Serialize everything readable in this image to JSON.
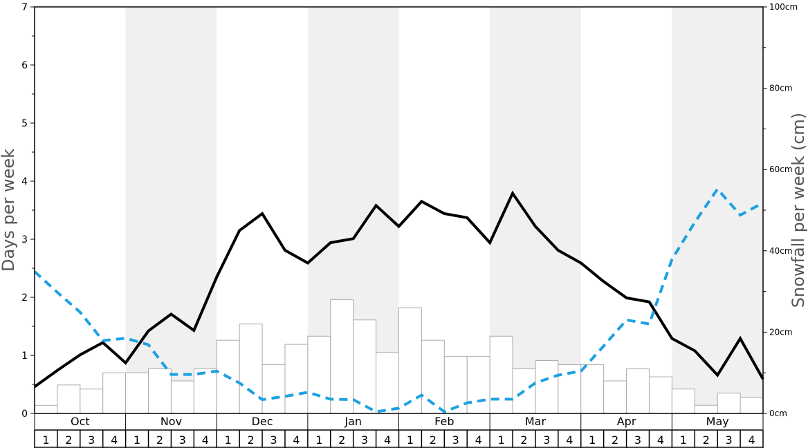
{
  "chart_data": {
    "type": "bar",
    "months": [
      "Oct",
      "Nov",
      "Dec",
      "Jan",
      "Feb",
      "Mar",
      "Apr",
      "May"
    ],
    "weeks": [
      "1",
      "2",
      "3",
      "4"
    ],
    "ylabel_left": "Days per week",
    "ylabel_right": "Snowfall per week (cm)",
    "ylim_left": [
      0,
      7
    ],
    "ylim_right": [
      0,
      100
    ],
    "left_ticks": [
      "0",
      "1",
      "2",
      "3",
      "4",
      "5",
      "6",
      "7"
    ],
    "right_ticks": [
      "0cm",
      "20cm",
      "40cm",
      "60cm",
      "80cm",
      "100cm"
    ],
    "series": [
      {
        "kind": "bar",
        "axis": "right",
        "values": [
          2,
          7,
          6,
          10,
          10,
          11,
          8,
          11,
          18,
          22,
          12,
          17,
          19,
          28,
          23,
          15,
          26,
          18,
          14,
          14,
          19,
          11,
          13,
          12,
          12,
          8,
          11,
          9,
          6,
          2,
          5,
          4
        ]
      },
      {
        "kind": "line",
        "axis": "left",
        "style": "solid",
        "color": "#000000",
        "values": [
          0.46,
          0.74,
          1.01,
          1.22,
          0.87,
          1.42,
          1.71,
          1.43,
          2.35,
          3.15,
          3.44,
          2.81,
          2.59,
          2.94,
          3.01,
          3.58,
          3.22,
          3.65,
          3.44,
          3.37,
          2.94,
          3.79,
          3.22,
          2.81,
          2.59,
          2.27,
          1.99,
          1.92,
          1.29,
          1.08,
          0.66,
          1.29,
          0.59
        ]
      },
      {
        "kind": "line",
        "axis": "right",
        "style": "dashed",
        "color": "#1ba1e2",
        "values": [
          34.9,
          29.8,
          24.9,
          17.9,
          18.5,
          16.9,
          9.6,
          9.6,
          10.4,
          7.5,
          3.4,
          4.2,
          5.2,
          3.5,
          3.4,
          0.4,
          1.3,
          4.5,
          0.4,
          2.6,
          3.5,
          3.5,
          7.5,
          9.4,
          10.4,
          16.6,
          23,
          22,
          37.9,
          47,
          55.2,
          48.8,
          51.8
        ]
      }
    ],
    "shaded_months": [
      "Nov",
      "Jan",
      "Mar",
      "May"
    ],
    "grid": false
  }
}
